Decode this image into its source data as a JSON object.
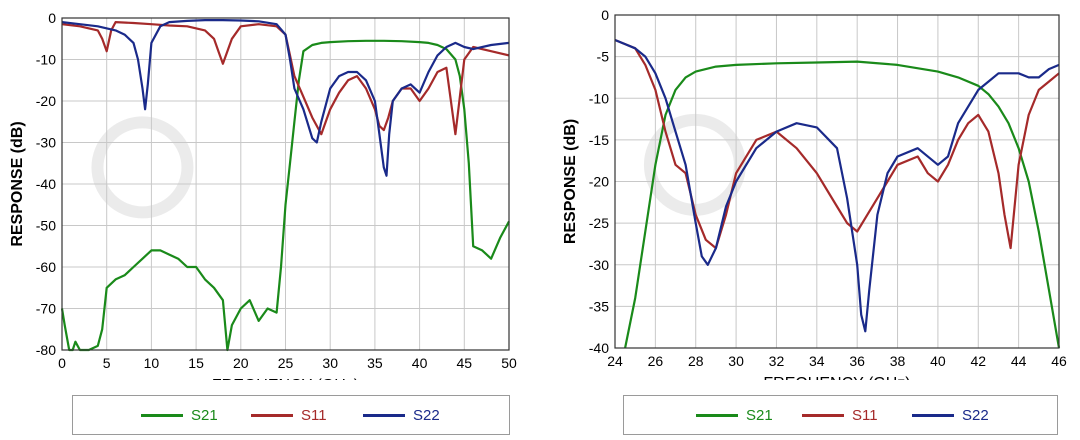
{
  "chart_data": [
    {
      "type": "line",
      "xlabel": "FREQUENCY (GHz)",
      "ylabel": "RESPONSE (dB)",
      "xlim": [
        0,
        50
      ],
      "ylim": [
        -80,
        0
      ],
      "xticks": [
        0,
        5,
        10,
        15,
        20,
        25,
        30,
        35,
        40,
        45,
        50
      ],
      "yticks": [
        0,
        -10,
        -20,
        -30,
        -40,
        -50,
        -60,
        -70,
        -80
      ],
      "grid": true,
      "legend_position": "bottom",
      "series": [
        {
          "name": "S21",
          "color": "#1a8a1a",
          "x": [
            0,
            0.3,
            0.8,
            1.2,
            1.5,
            2,
            3,
            4,
            4.5,
            5,
            6,
            7,
            8,
            9,
            10,
            11,
            12,
            13,
            14,
            15,
            16,
            17,
            18,
            18.5,
            19,
            20,
            21,
            22,
            23,
            24,
            24.5,
            25,
            25.5,
            26,
            26.5,
            27,
            28,
            29,
            30,
            32,
            34,
            36,
            38,
            40,
            41,
            42,
            43,
            44,
            44.5,
            45,
            45.5,
            46,
            47,
            48,
            49,
            50
          ],
          "y": [
            -70,
            -74,
            -80,
            -80,
            -78,
            -80,
            -80,
            -79,
            -75,
            -65,
            -63,
            -62,
            -60,
            -58,
            -56,
            -56,
            -57,
            -58,
            -60,
            -60,
            -63,
            -65,
            -68,
            -80,
            -74,
            -70,
            -68,
            -73,
            -70,
            -71,
            -60,
            -45,
            -35,
            -25,
            -15,
            -8,
            -6.5,
            -6,
            -5.8,
            -5.6,
            -5.5,
            -5.5,
            -5.6,
            -5.8,
            -6,
            -6.5,
            -7.5,
            -10,
            -14,
            -22,
            -35,
            -55,
            -56,
            -58,
            -53,
            -49
          ]
        },
        {
          "name": "S11",
          "color": "#a52a2a",
          "x": [
            0,
            2,
            4,
            4.5,
            5,
            5.5,
            6,
            8,
            10,
            12,
            14,
            16,
            17,
            17.5,
            18,
            18.5,
            19,
            20,
            22,
            24,
            25,
            25.5,
            26,
            27,
            28,
            29,
            30,
            31,
            32,
            33,
            34,
            35,
            35.5,
            36,
            36.5,
            37,
            38,
            39,
            40,
            41,
            42,
            43,
            43.5,
            44,
            45,
            46,
            48,
            50
          ],
          "y": [
            -1.5,
            -2,
            -3,
            -5,
            -8,
            -3,
            -1,
            -1.2,
            -1.5,
            -1.8,
            -2,
            -3,
            -5,
            -8,
            -11,
            -8,
            -5,
            -2,
            -1.5,
            -2,
            -4,
            -9,
            -14,
            -19,
            -24,
            -28,
            -22,
            -18,
            -15,
            -14,
            -17,
            -22,
            -26,
            -27,
            -24,
            -20,
            -17,
            -17,
            -20,
            -17,
            -13,
            -12,
            -20,
            -28,
            -10,
            -7,
            -8,
            -9
          ]
        },
        {
          "name": "S22",
          "color": "#1a2a8a",
          "x": [
            0,
            2,
            4,
            6,
            7,
            8,
            8.5,
            9,
            9.3,
            9.6,
            10,
            11,
            12,
            14,
            16,
            18,
            20,
            22,
            24,
            25,
            25.5,
            26,
            27,
            28,
            28.5,
            29,
            30,
            31,
            32,
            33,
            34,
            35,
            35.5,
            36,
            36.3,
            36.6,
            37,
            38,
            39,
            40,
            41,
            42,
            43,
            44,
            45,
            46,
            48,
            50
          ],
          "y": [
            -1,
            -1.5,
            -2,
            -3,
            -4,
            -6,
            -10,
            -17,
            -22,
            -16,
            -6,
            -2,
            -1,
            -0.7,
            -0.5,
            -0.5,
            -0.6,
            -0.8,
            -1.5,
            -4,
            -10,
            -17,
            -22,
            -29,
            -30,
            -25,
            -17,
            -14,
            -13,
            -13,
            -15,
            -20,
            -28,
            -36,
            -38,
            -28,
            -20,
            -17,
            -16,
            -18,
            -13,
            -9,
            -7,
            -6,
            -7,
            -7.5,
            -6.5,
            -6
          ]
        }
      ]
    },
    {
      "type": "line",
      "xlabel": "FREQUENCY (GHz)",
      "ylabel": "RESPONSE (dB)",
      "xlim": [
        24,
        46
      ],
      "ylim": [
        -40,
        0
      ],
      "xticks": [
        24,
        26,
        28,
        30,
        32,
        34,
        36,
        38,
        40,
        42,
        44,
        46
      ],
      "yticks": [
        0,
        -5,
        -10,
        -15,
        -20,
        -25,
        -30,
        -35,
        -40
      ],
      "grid": true,
      "legend_position": "bottom",
      "series": [
        {
          "name": "S21",
          "color": "#1a8a1a",
          "x": [
            24.5,
            25,
            25.5,
            26,
            26.5,
            27,
            27.5,
            28,
            29,
            30,
            32,
            34,
            36,
            38,
            40,
            41,
            42,
            42.5,
            43,
            43.5,
            44,
            44.5,
            45,
            45.5,
            46
          ],
          "y": [
            -40,
            -34,
            -26,
            -18,
            -12,
            -9,
            -7.5,
            -6.8,
            -6.2,
            -6,
            -5.8,
            -5.7,
            -5.6,
            -6,
            -6.8,
            -7.5,
            -8.5,
            -9.5,
            -11,
            -13,
            -16,
            -20,
            -26,
            -33,
            -40
          ]
        },
        {
          "name": "S11",
          "color": "#a52a2a",
          "x": [
            24,
            24.5,
            25,
            25.5,
            26,
            26.5,
            27,
            27.5,
            28,
            28.5,
            29,
            29.5,
            30,
            31,
            32,
            33,
            34,
            35,
            35.5,
            36,
            36.5,
            37,
            37.5,
            38,
            39,
            39.5,
            40,
            40.5,
            41,
            41.5,
            42,
            42.5,
            43,
            43.3,
            43.6,
            44,
            44.5,
            45,
            45.5,
            46
          ],
          "y": [
            -3,
            -3.5,
            -4,
            -6,
            -9,
            -14,
            -18,
            -19,
            -24,
            -27,
            -28,
            -24,
            -19,
            -15,
            -14,
            -16,
            -19,
            -23,
            -25,
            -26,
            -24,
            -22,
            -20,
            -18,
            -17,
            -19,
            -20,
            -18,
            -15,
            -13,
            -12,
            -14,
            -19,
            -24,
            -28,
            -18,
            -12,
            -9,
            -8,
            -7
          ]
        },
        {
          "name": "S22",
          "color": "#1a2a8a",
          "x": [
            24,
            24.5,
            25,
            25.5,
            26,
            26.5,
            27,
            27.5,
            28,
            28.3,
            28.6,
            29,
            29.5,
            30,
            31,
            32,
            33,
            34,
            35,
            35.5,
            36,
            36.2,
            36.4,
            36.6,
            37,
            37.5,
            38,
            39,
            40,
            40.5,
            41,
            41.5,
            42,
            42.5,
            43,
            44,
            44.5,
            45,
            45.5,
            46
          ],
          "y": [
            -3,
            -3.5,
            -4,
            -5,
            -7,
            -10,
            -14,
            -18,
            -25,
            -29,
            -30,
            -28,
            -23,
            -20,
            -16,
            -14,
            -13,
            -13.5,
            -16,
            -22,
            -30,
            -36,
            -38,
            -33,
            -24,
            -19,
            -17,
            -16,
            -18,
            -17,
            -13,
            -11,
            -9,
            -8,
            -7,
            -7,
            -7.5,
            -7.5,
            -6.5,
            -6
          ]
        }
      ]
    }
  ]
}
